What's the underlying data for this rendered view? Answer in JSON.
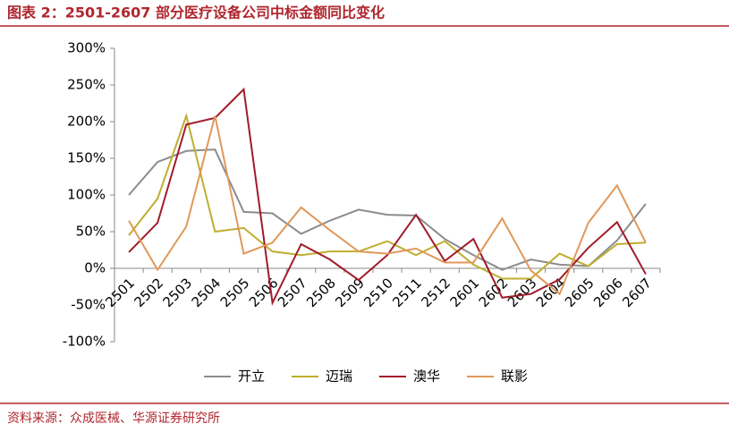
{
  "chart_data": {
    "type": "line",
    "title": "图表 2：2501-2607 部分医疗设备公司中标金额同比变化",
    "source": "资料来源：众成医械、华源证券研究所",
    "categories": [
      "2501",
      "2502",
      "2503",
      "2504",
      "2505",
      "2506",
      "2507",
      "2508",
      "2509",
      "2510",
      "2511",
      "2512",
      "2601",
      "2602",
      "2603",
      "2604",
      "2605",
      "2606",
      "2607"
    ],
    "series": [
      {
        "name": "开立",
        "color": "#8c8c8c",
        "values": [
          100,
          145,
          160,
          162,
          77,
          75,
          47,
          65,
          80,
          73,
          72,
          40,
          18,
          -2,
          12,
          5,
          3,
          38,
          88
        ]
      },
      {
        "name": "迈瑞",
        "color": "#bfae2e",
        "values": [
          45,
          95,
          208,
          50,
          55,
          23,
          18,
          23,
          23,
          37,
          18,
          37,
          5,
          -14,
          -14,
          20,
          3,
          33,
          35
        ]
      },
      {
        "name": "澳华",
        "color": "#a01c2a",
        "values": [
          22,
          62,
          196,
          205,
          244,
          -47,
          33,
          12,
          -16,
          18,
          73,
          10,
          40,
          -40,
          -35,
          -15,
          28,
          63,
          -8
        ]
      },
      {
        "name": "联影",
        "color": "#e0985a",
        "values": [
          65,
          -2,
          57,
          208,
          20,
          35,
          83,
          52,
          23,
          20,
          27,
          8,
          8,
          68,
          -3,
          -35,
          62,
          113,
          35
        ]
      }
    ],
    "ylim": [
      -100,
      300
    ],
    "yticks": [
      {
        "value": -100,
        "label": "-100%"
      },
      {
        "value": -50,
        "label": "-50%"
      },
      {
        "value": 0,
        "label": "0%"
      },
      {
        "value": 50,
        "label": "50%"
      },
      {
        "value": 100,
        "label": "100%"
      },
      {
        "value": 150,
        "label": "150%"
      },
      {
        "value": 200,
        "label": "200%"
      },
      {
        "value": 250,
        "label": "250%"
      },
      {
        "value": 300,
        "label": "300%"
      }
    ],
    "grid": false,
    "legend": "bottom"
  }
}
